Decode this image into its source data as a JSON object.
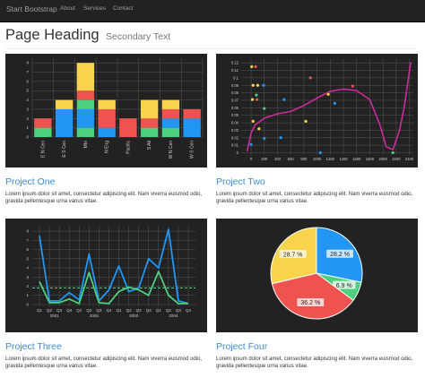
{
  "navbar": {
    "brand": "Start Bootstrap",
    "links": [
      {
        "label": "About"
      },
      {
        "label": "Services"
      },
      {
        "label": "Contact"
      }
    ]
  },
  "page": {
    "title": "Page Heading",
    "subtitle": "Secondary Text"
  },
  "projects": [
    {
      "title": "Project One",
      "text1": "Lorem ipsum dolor sit amet, consectetur adipiscing elit. Nam viverra euismod odio,",
      "text2": "gravida pellentesque urna varius vitae."
    },
    {
      "title": "Project Two",
      "text1": "Lorem ipsum dolor sit amet, consectetur adipiscing elit. Nam viverra euismod odio,",
      "text2": "gravida pellentesque urna varius vitae."
    },
    {
      "title": "Project Three",
      "text1": "Lorem ipsum dolor sit amet, consectetur adipiscing elit. Nam viverra euismod odio,",
      "text2": "gravida pellentesque urna varius vitae."
    },
    {
      "title": "Project Four",
      "text1": "Lorem ipsum dolor sit amet, consectetur adipiscing elit. Nam viverra euismod odio,",
      "text2": "gravida pellentesque urna varius vitae."
    }
  ],
  "colors": {
    "red": "#ef5350",
    "blue": "#2196f3",
    "green": "#4cd07d",
    "yellow": "#f7d44c",
    "magenta": "#cc2c9c",
    "panel": "#222222",
    "link": "#428bca"
  },
  "chart_data": [
    {
      "type": "bar",
      "stacked": true,
      "categories": [
        "E N Cen",
        "E S Cen",
        "Mtn",
        "N Eng",
        "Pacific",
        "S Atl",
        "W N Cen",
        "W S Cen"
      ],
      "series": [
        {
          "color": "#4cd07d",
          "values": [
            1,
            0,
            1,
            0,
            0,
            1,
            1,
            0
          ]
        },
        {
          "color": "#2196f3",
          "values": [
            0,
            3,
            2,
            1,
            0,
            0,
            1,
            2
          ]
        },
        {
          "color": "#4cd07d",
          "values": [
            0,
            0,
            1,
            0,
            0,
            0,
            0,
            0
          ]
        },
        {
          "color": "#ef5350",
          "values": [
            1,
            0,
            1,
            2,
            2,
            1,
            1,
            1
          ]
        },
        {
          "color": "#f7d44c",
          "values": [
            0,
            1,
            3,
            1,
            0,
            2,
            1,
            0
          ]
        }
      ],
      "yticks": [
        0,
        1,
        2,
        3,
        4,
        5,
        6,
        7,
        8
      ],
      "ylim": [
        0,
        8.5
      ],
      "grid": true
    },
    {
      "type": "scatter",
      "xticks": [
        0,
        200,
        400,
        600,
        800,
        1000,
        1200,
        1400,
        1600,
        1800,
        2000,
        2200,
        2400
      ],
      "yticks": [
        0,
        0.01,
        0.02,
        0.03,
        0.04,
        0.05,
        0.06,
        0.07,
        0.08,
        0.09,
        0.1,
        0.11,
        0.12
      ],
      "ylim": [
        -0.003,
        0.125
      ],
      "xlim": [
        -150,
        2460
      ],
      "points": [
        {
          "x": 10,
          "y": 0.115,
          "c": "#f7d44c"
        },
        {
          "x": 70,
          "y": 0.115,
          "c": "#ef5350"
        },
        {
          "x": 900,
          "y": 0.1,
          "c": "#ef5350"
        },
        {
          "x": 30,
          "y": 0.09,
          "c": "#f7d44c"
        },
        {
          "x": 100,
          "y": 0.09,
          "c": "#f7d44c"
        },
        {
          "x": 190,
          "y": 0.09,
          "c": "#2196f3"
        },
        {
          "x": 1540,
          "y": 0.089,
          "c": "#ef5350"
        },
        {
          "x": 80,
          "y": 0.077,
          "c": "#4cd07d"
        },
        {
          "x": 1170,
          "y": 0.078,
          "c": "#f7d44c"
        },
        {
          "x": 500,
          "y": 0.071,
          "c": "#2196f3"
        },
        {
          "x": 20,
          "y": 0.071,
          "c": "#f7d44c"
        },
        {
          "x": 90,
          "y": 0.071,
          "c": "#ef5350"
        },
        {
          "x": 1270,
          "y": 0.066,
          "c": "#2196f3"
        },
        {
          "x": 200,
          "y": 0.059,
          "c": "#4cd07d"
        },
        {
          "x": 830,
          "y": 0.042,
          "c": "#f7d44c"
        },
        {
          "x": 30,
          "y": 0.042,
          "c": "#f7d44c"
        },
        {
          "x": 120,
          "y": 0.032,
          "c": "#f7d44c"
        },
        {
          "x": 200,
          "y": 0.019,
          "c": "#2196f3"
        },
        {
          "x": 450,
          "y": 0.02,
          "c": "#2196f3"
        },
        {
          "x": 0,
          "y": 0.011,
          "c": "#2196f3"
        },
        {
          "x": 1050,
          "y": 0.0,
          "c": "#2196f3"
        },
        {
          "x": 2150,
          "y": 0.0,
          "c": "#4cd07d"
        }
      ],
      "curve": [
        [
          -60,
          0.002
        ],
        [
          0,
          0.026
        ],
        [
          60,
          0.037
        ],
        [
          200,
          0.046
        ],
        [
          400,
          0.052
        ],
        [
          600,
          0.055
        ],
        [
          800,
          0.063
        ],
        [
          1000,
          0.073
        ],
        [
          1200,
          0.082
        ],
        [
          1400,
          0.085
        ],
        [
          1600,
          0.083
        ],
        [
          1800,
          0.071
        ],
        [
          1950,
          0.038
        ],
        [
          2050,
          0.008
        ],
        [
          2150,
          0.004
        ],
        [
          2250,
          0.03
        ],
        [
          2320,
          0.06
        ],
        [
          2370,
          0.09
        ],
        [
          2420,
          0.121
        ]
      ],
      "grid": true
    },
    {
      "type": "line",
      "xticks": [
        "Q1",
        "Q2",
        "Q3",
        "Q4",
        "Q1",
        "Q2",
        "Q3",
        "Q4",
        "Q1",
        "Q2",
        "Q3",
        "Q4",
        "Q1",
        "Q2",
        "Q3",
        "Q4"
      ],
      "years": [
        "2001",
        "2002",
        "2003",
        "2004"
      ],
      "series": [
        {
          "color": "#2196f3",
          "values": [
            7.5,
            0.4,
            0.4,
            1.3,
            0.5,
            5.5,
            0.4,
            1.6,
            4.2,
            1.4,
            1.8,
            5.0,
            4.0,
            8.2,
            0.4,
            0.1
          ]
        },
        {
          "color": "#4cd07d",
          "values": [
            2.5,
            0.2,
            0.2,
            0.6,
            0.1,
            3.5,
            0.2,
            0.1,
            1.4,
            1.9,
            1.6,
            1.0,
            3.6,
            1.0,
            0.1,
            0.1
          ]
        }
      ],
      "reference": {
        "color": "#4cd07d",
        "value": 1.8,
        "dashed": true
      },
      "yticks": [
        0,
        1,
        2,
        3,
        4,
        5,
        6,
        7,
        8
      ],
      "ylim": [
        -0.2,
        8.6
      ],
      "grid": true
    },
    {
      "type": "pie",
      "slices": [
        {
          "value": 28.2,
          "label": "28.2 %",
          "color": "#2196f3"
        },
        {
          "value": 6.9,
          "label": "6.9 %",
          "color": "#4cd07d"
        },
        {
          "value": 36.2,
          "label": "36.2 %",
          "color": "#ef5350"
        },
        {
          "value": 28.7,
          "label": "28.7 %",
          "color": "#f7d44c"
        }
      ]
    }
  ]
}
